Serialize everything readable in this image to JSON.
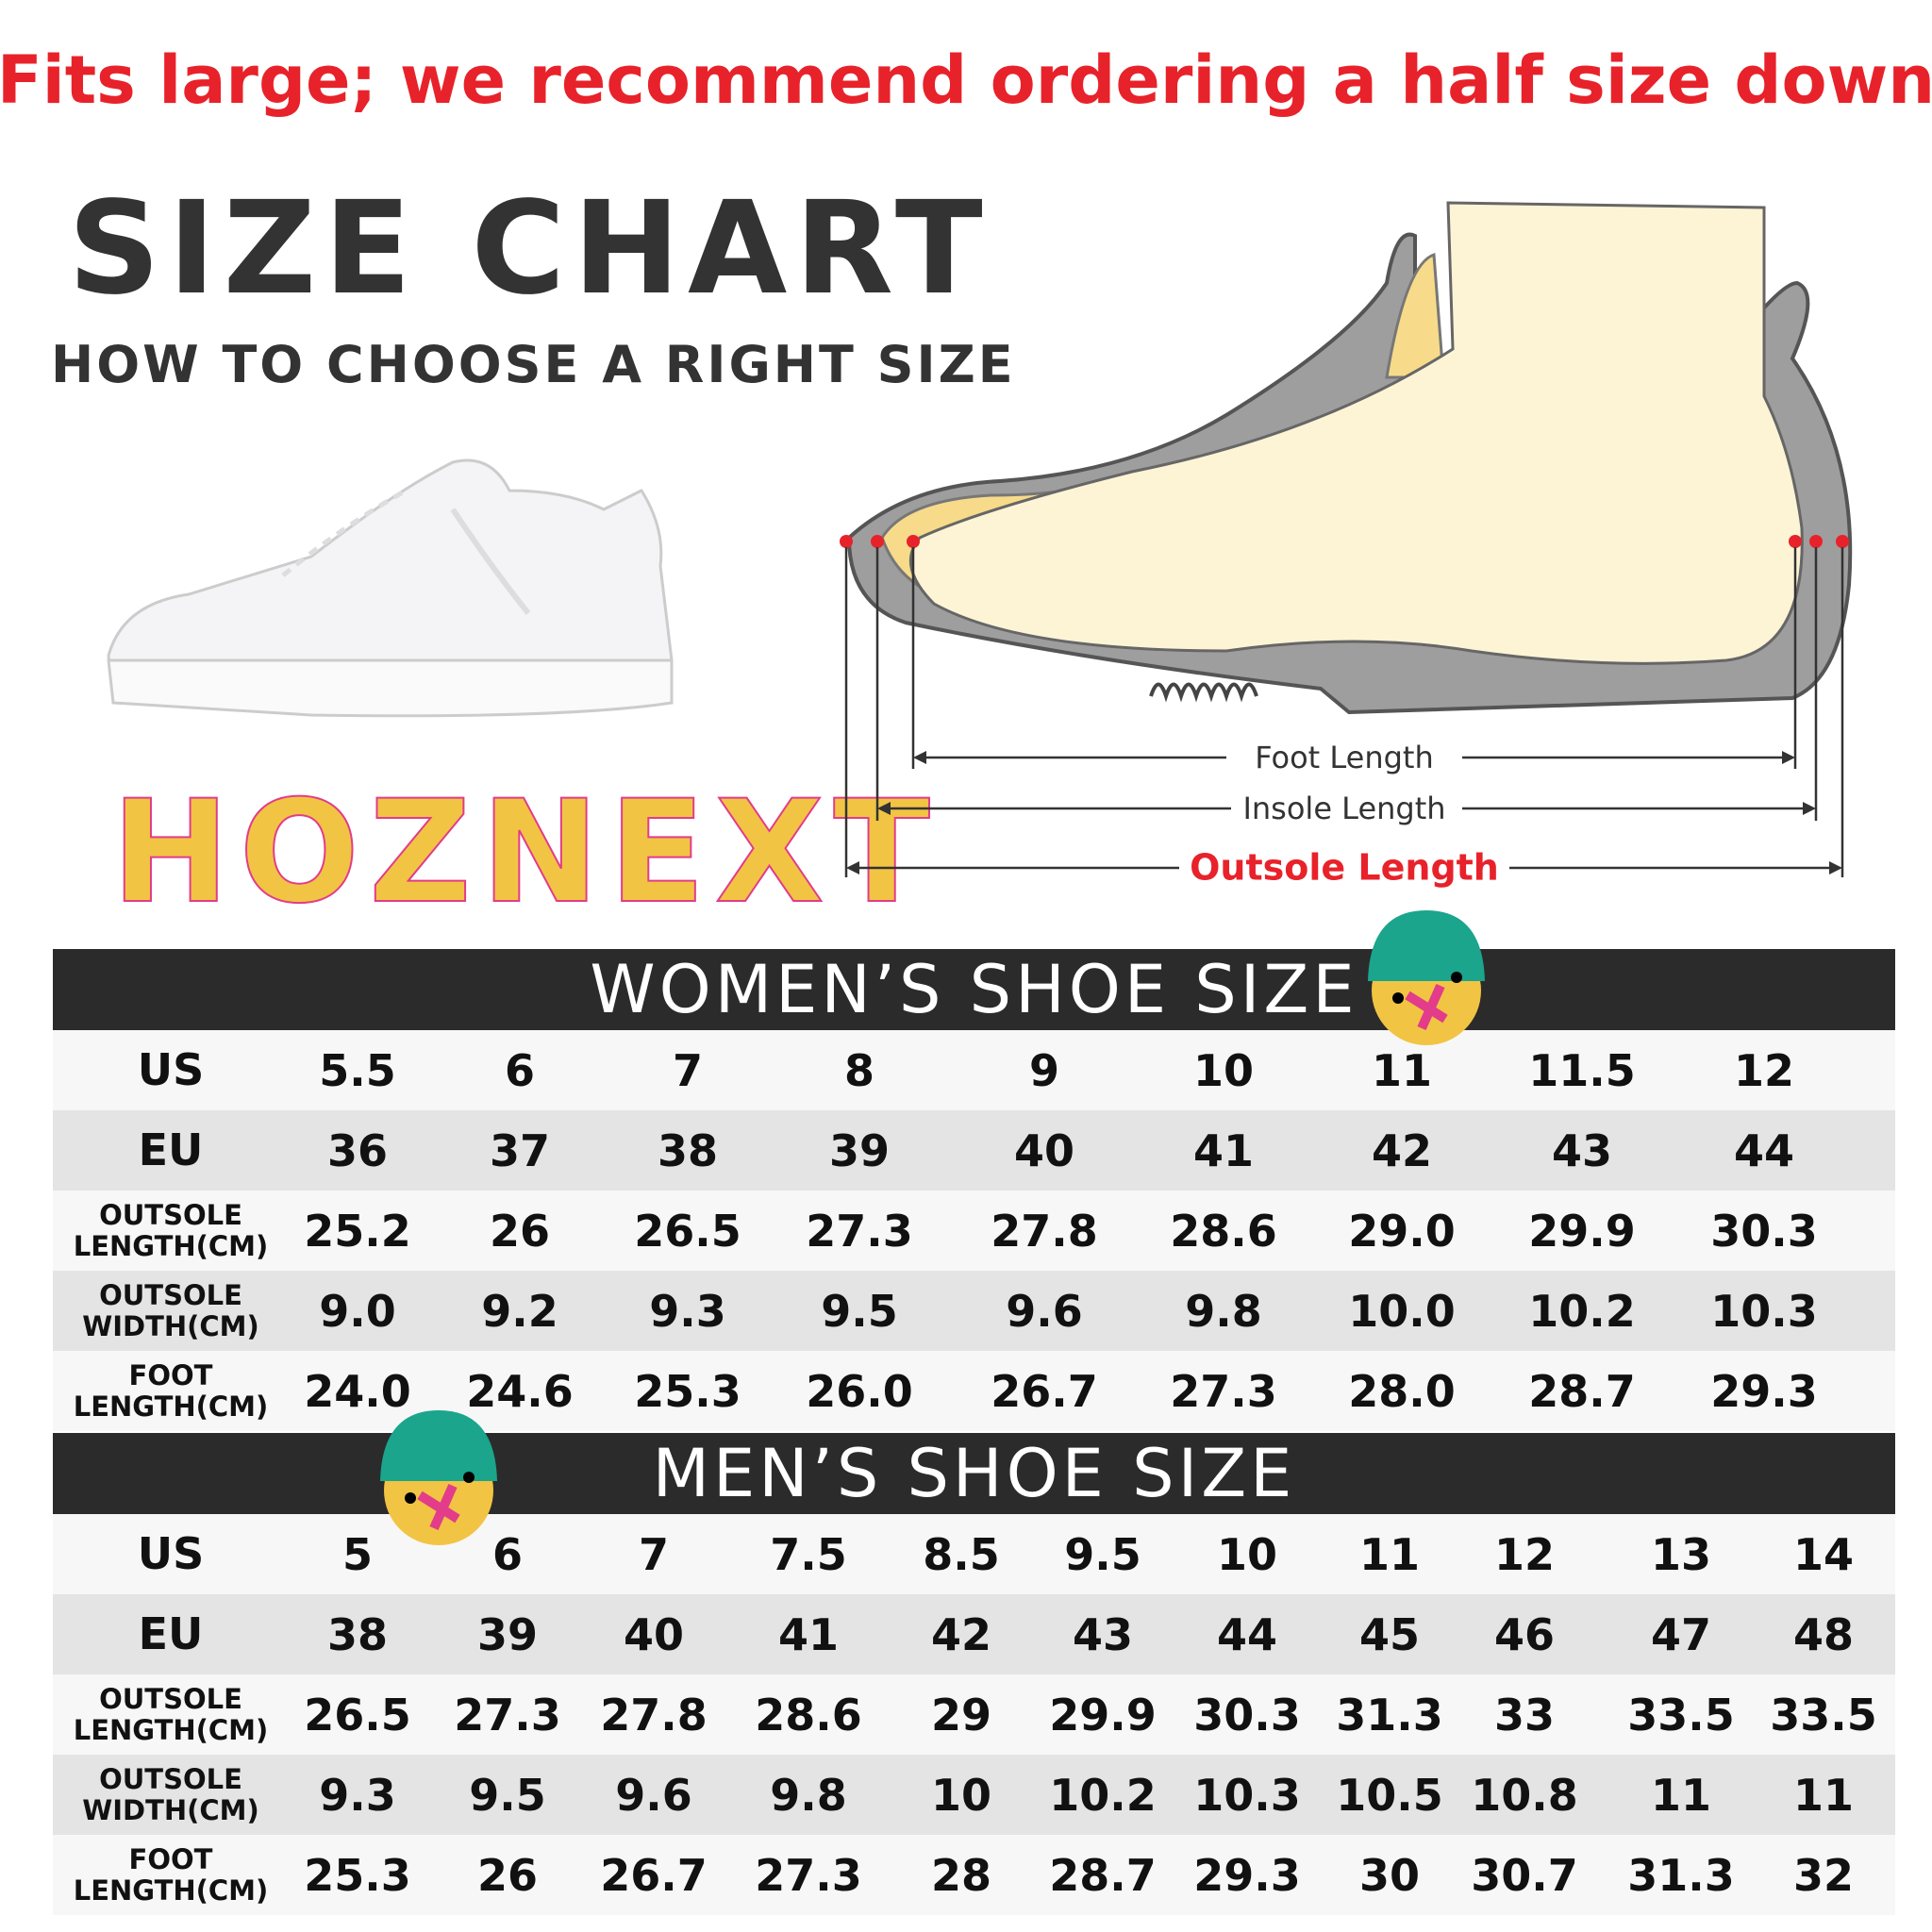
{
  "banner": "Fits large; we recommend ordering a half size down",
  "header": {
    "title": "SIZE CHART",
    "subtitle": "HOW TO CHOOSE A RIGHT SIZE"
  },
  "logo": "HOZNEXT",
  "diagram": {
    "labels": [
      "Foot Length",
      "Insole Length",
      "Outsole Length"
    ]
  },
  "tables": [
    {
      "title": "WOMEN’S SHOE SIZE",
      "rows": [
        {
          "label": "US",
          "values": [
            "5.5",
            "6",
            "7",
            "8",
            "9",
            "10",
            "11",
            "11.5",
            "12"
          ]
        },
        {
          "label": "EU",
          "values": [
            "36",
            "37",
            "38",
            "39",
            "40",
            "41",
            "42",
            "43",
            "44"
          ]
        },
        {
          "label": "OUTSOLE LENGTH(CM)",
          "values": [
            "25.2",
            "26",
            "26.5",
            "27.3",
            "27.8",
            "28.6",
            "29.0",
            "29.9",
            "30.3"
          ]
        },
        {
          "label": "OUTSOLE WIDTH(CM)",
          "values": [
            "9.0",
            "9.2",
            "9.3",
            "9.5",
            "9.6",
            "9.8",
            "10.0",
            "10.2",
            "10.3"
          ]
        },
        {
          "label": "FOOT LENGTH(CM)",
          "values": [
            "24.0",
            "24.6",
            "25.3",
            "26.0",
            "26.7",
            "27.3",
            "28.0",
            "28.7",
            "29.3"
          ]
        }
      ]
    },
    {
      "title": "MEN’S SHOE SIZE",
      "rows": [
        {
          "label": "US",
          "values": [
            "5",
            "6",
            "7",
            "7.5",
            "8.5",
            "9.5",
            "10",
            "11",
            "12",
            "13",
            "14"
          ]
        },
        {
          "label": "EU",
          "values": [
            "38",
            "39",
            "40",
            "41",
            "42",
            "43",
            "44",
            "45",
            "46",
            "47",
            "48"
          ]
        },
        {
          "label": "OUTSOLE LENGTH(CM)",
          "values": [
            "26.5",
            "27.3",
            "27.8",
            "28.6",
            "29",
            "29.9",
            "30.3",
            "31.3",
            "33",
            "33.5",
            "33.5"
          ]
        },
        {
          "label": "OUTSOLE WIDTH(CM)",
          "values": [
            "9.3",
            "9.5",
            "9.6",
            "9.8",
            "10",
            "10.2",
            "10.3",
            "10.5",
            "10.8",
            "11",
            "11"
          ]
        },
        {
          "label": "FOOT LENGTH(CM)",
          "values": [
            "25.3",
            "26",
            "26.7",
            "27.3",
            "28",
            "28.7",
            "29.3",
            "30",
            "30.7",
            "31.3",
            "32"
          ]
        }
      ]
    }
  ]
}
